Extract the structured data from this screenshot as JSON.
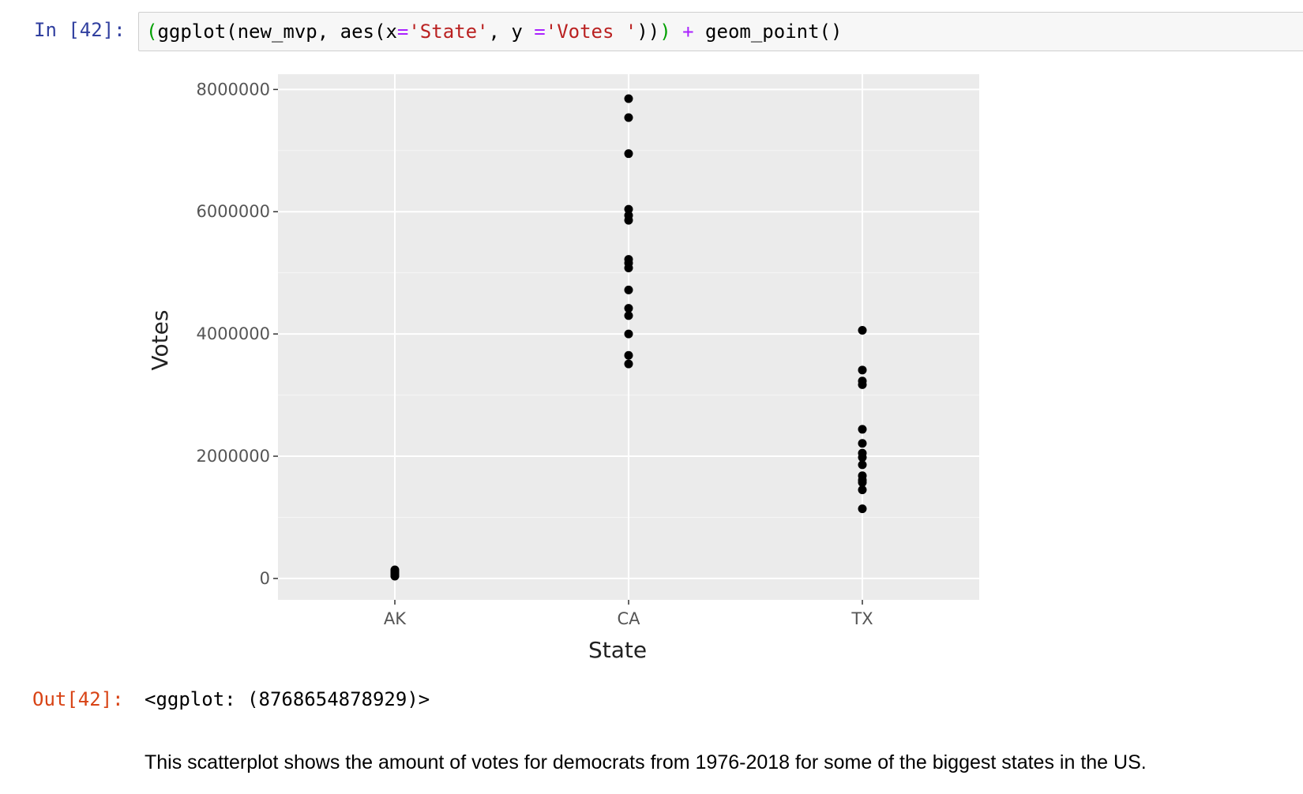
{
  "input_cell": {
    "prompt": "In [42]:",
    "code_tokens": [
      {
        "text": "(",
        "cls": "c-paren"
      },
      {
        "text": "ggplot(new_mvp, aes(x",
        "cls": ""
      },
      {
        "text": "=",
        "cls": "c-op"
      },
      {
        "text": "'State'",
        "cls": "c-str"
      },
      {
        "text": ", y ",
        "cls": ""
      },
      {
        "text": "=",
        "cls": "c-op"
      },
      {
        "text": "'Votes '",
        "cls": "c-str"
      },
      {
        "text": "))",
        "cls": ""
      },
      {
        "text": ")",
        "cls": "c-paren"
      },
      {
        "text": " ",
        "cls": ""
      },
      {
        "text": "+",
        "cls": "c-op"
      },
      {
        "text": " geom_point()",
        "cls": ""
      }
    ]
  },
  "output_cell": {
    "prompt": "Out[42]:",
    "text": "<ggplot: (8768654878929)>"
  },
  "markdown": {
    "text": "This scatterplot shows the amount of votes for democrats from 1976-2018 for some of the biggest states in the US."
  },
  "colors": {
    "panel_bg": "#ebebeb",
    "grid_major": "#ffffff",
    "grid_minor": "#f5f5f5",
    "point": "#000000",
    "tick": "#333333"
  },
  "chart_data": {
    "type": "scatter",
    "title": "",
    "xlabel": "State",
    "ylabel": "Votes",
    "categories": [
      "AK",
      "CA",
      "TX"
    ],
    "ylim": [
      -350000,
      8250000
    ],
    "yticks": [
      0,
      2000000,
      4000000,
      6000000,
      8000000
    ],
    "ytick_labels": [
      "0",
      "2000000",
      "4000000",
      "6000000",
      "8000000"
    ],
    "series": [
      {
        "name": "AK",
        "values": [
          140000,
          125000,
          110000,
          95000,
          85000,
          75000,
          65000,
          55000,
          45000,
          38000
        ]
      },
      {
        "name": "CA",
        "values": [
          7850000,
          7540000,
          6950000,
          6040000,
          5940000,
          5860000,
          5220000,
          5160000,
          5080000,
          4720000,
          4420000,
          4300000,
          4000000,
          3650000,
          3510000
        ]
      },
      {
        "name": "TX",
        "values": [
          4060000,
          3410000,
          3230000,
          3170000,
          2440000,
          2210000,
          2050000,
          1980000,
          1860000,
          1680000,
          1610000,
          1570000,
          1450000,
          1140000
        ]
      }
    ]
  }
}
